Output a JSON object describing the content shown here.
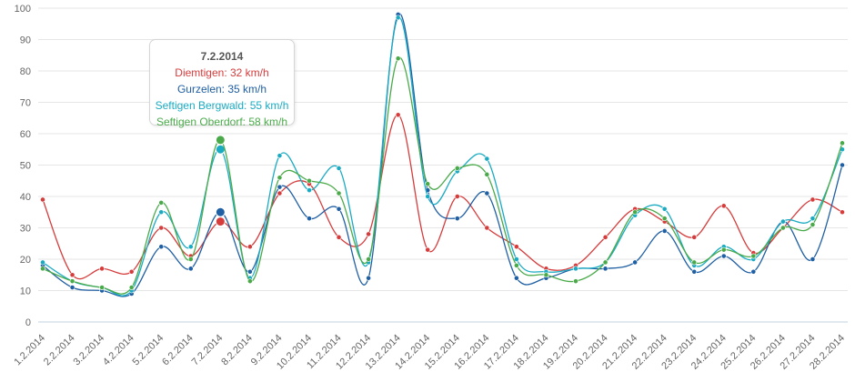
{
  "chart_data": {
    "type": "line",
    "categories": [
      "1.2.2014",
      "2.2.2014",
      "3.2.2014",
      "4.2.2014",
      "5.2.2014",
      "6.2.2014",
      "7.2.2014",
      "8.2.2014",
      "9.2.2014",
      "10.2.2014",
      "11.2.2014",
      "12.2.2014",
      "13.2.2014",
      "14.2.2014",
      "15.2.2014",
      "16.2.2014",
      "17.2.2014",
      "18.2.2014",
      "19.2.2014",
      "20.2.2014",
      "21.2.2014",
      "22.2.2014",
      "23.2.2014",
      "24.2.2014",
      "25.2.2014",
      "26.2.2014",
      "27.2.2014",
      "28.2.2014"
    ],
    "yticks": [
      0,
      10,
      20,
      30,
      40,
      50,
      60,
      70,
      80,
      90,
      100
    ],
    "ylim": [
      0,
      100
    ],
    "unit": "km/h",
    "series": [
      {
        "name": "Diemtigen",
        "color": "#d63c3c",
        "values": [
          39,
          15,
          17,
          16,
          30,
          21,
          32,
          24,
          41,
          44,
          27,
          28,
          66,
          23,
          40,
          30,
          24,
          17,
          18,
          27,
          36,
          32,
          27,
          37,
          22,
          30,
          39,
          35
        ]
      },
      {
        "name": "Gurzelen",
        "color": "#1f5fa3",
        "values": [
          18,
          11,
          10,
          9,
          24,
          17,
          35,
          16,
          43,
          33,
          36,
          14,
          98,
          42,
          33,
          41,
          14,
          14,
          17,
          17,
          19,
          29,
          16,
          21,
          16,
          32,
          20,
          50
        ]
      },
      {
        "name": "Seftigen Bergwald",
        "color": "#1aabc3",
        "values": [
          19,
          13,
          11,
          10,
          35,
          24,
          55,
          14,
          53,
          42,
          49,
          19,
          97,
          40,
          48,
          52,
          20,
          16,
          17,
          19,
          34,
          36,
          18,
          24,
          20,
          32,
          33,
          55
        ]
      },
      {
        "name": "Seftigen Oberdorf",
        "color": "#4aaa4a",
        "values": [
          17,
          13,
          11,
          11,
          38,
          20,
          58,
          13,
          46,
          45,
          41,
          20,
          84,
          44,
          49,
          47,
          18,
          15,
          13,
          19,
          35,
          33,
          19,
          23,
          21,
          30,
          31,
          57
        ]
      }
    ],
    "highlight_index": 6,
    "tooltip": {
      "title": "7.2.2014",
      "lines": [
        "Diemtigen: 32 km/h",
        "Gurzelen: 35 km/h",
        "Seftigen Bergwald: 55 km/h",
        "Seftigen Oberdorf: 58 km/h"
      ]
    }
  }
}
